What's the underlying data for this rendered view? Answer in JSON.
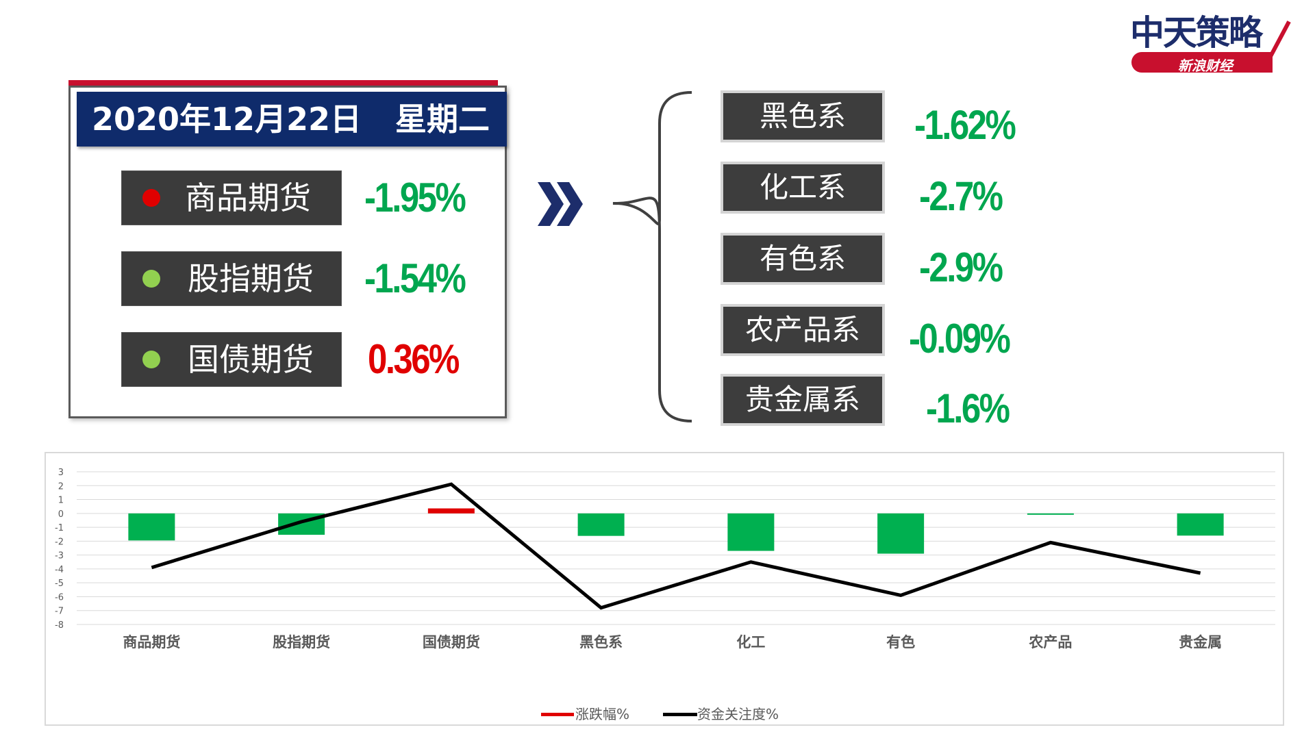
{
  "logo": {
    "title": "中天策略",
    "subtitle": "新浪财经"
  },
  "date_panel": {
    "date": "2020年12月22日",
    "weekday": "星期二",
    "items": [
      {
        "label": "商品期货",
        "value": "-1.95%",
        "dot_color": "#e00000",
        "value_color": "#00a64f"
      },
      {
        "label": "股指期货",
        "value": "-1.54%",
        "dot_color": "#92d050",
        "value_color": "#00a64f"
      },
      {
        "label": "国债期货",
        "value": "0.36%",
        "dot_color": "#92d050",
        "value_color": "#e00000"
      }
    ]
  },
  "sectors": [
    {
      "label": "黑色系",
      "value": "-1.62%"
    },
    {
      "label": "化工系",
      "value": "-2.7%"
    },
    {
      "label": "有色系",
      "value": "-2.9%"
    },
    {
      "label": "农产品系",
      "value": "-0.09%"
    },
    {
      "label": "贵金属系",
      "value": "-1.6%"
    }
  ],
  "colors": {
    "green": "#00a64f",
    "red": "#e00000",
    "navy": "#0f2b6b"
  },
  "chart_data": {
    "type": "bar",
    "categories": [
      "商品期货",
      "股指期货",
      "国债期货",
      "黑色系",
      "化工",
      "有色",
      "农产品",
      "贵金属"
    ],
    "y_ticks": [
      "3",
      "2",
      "1",
      "0",
      "-1",
      "-2",
      "-3",
      "-4",
      "-5",
      "-6",
      "-7",
      "-8"
    ],
    "ylim": [
      -8,
      3
    ],
    "grid": true,
    "legend_position": "bottom",
    "series": [
      {
        "name": "涨跌幅%",
        "type": "bar",
        "values": [
          -1.95,
          -1.54,
          0.36,
          -1.62,
          -2.7,
          -2.9,
          -0.09,
          -1.6
        ],
        "colors": [
          "#00b050",
          "#00b050",
          "#e00000",
          "#00b050",
          "#00b050",
          "#00b050",
          "#00b050",
          "#00b050"
        ]
      },
      {
        "name": "资金关注度%",
        "type": "line",
        "values": [
          -3.9,
          -0.6,
          2.1,
          -6.8,
          -3.5,
          -5.9,
          -2.1,
          -4.3
        ],
        "color": "#000000"
      }
    ]
  }
}
